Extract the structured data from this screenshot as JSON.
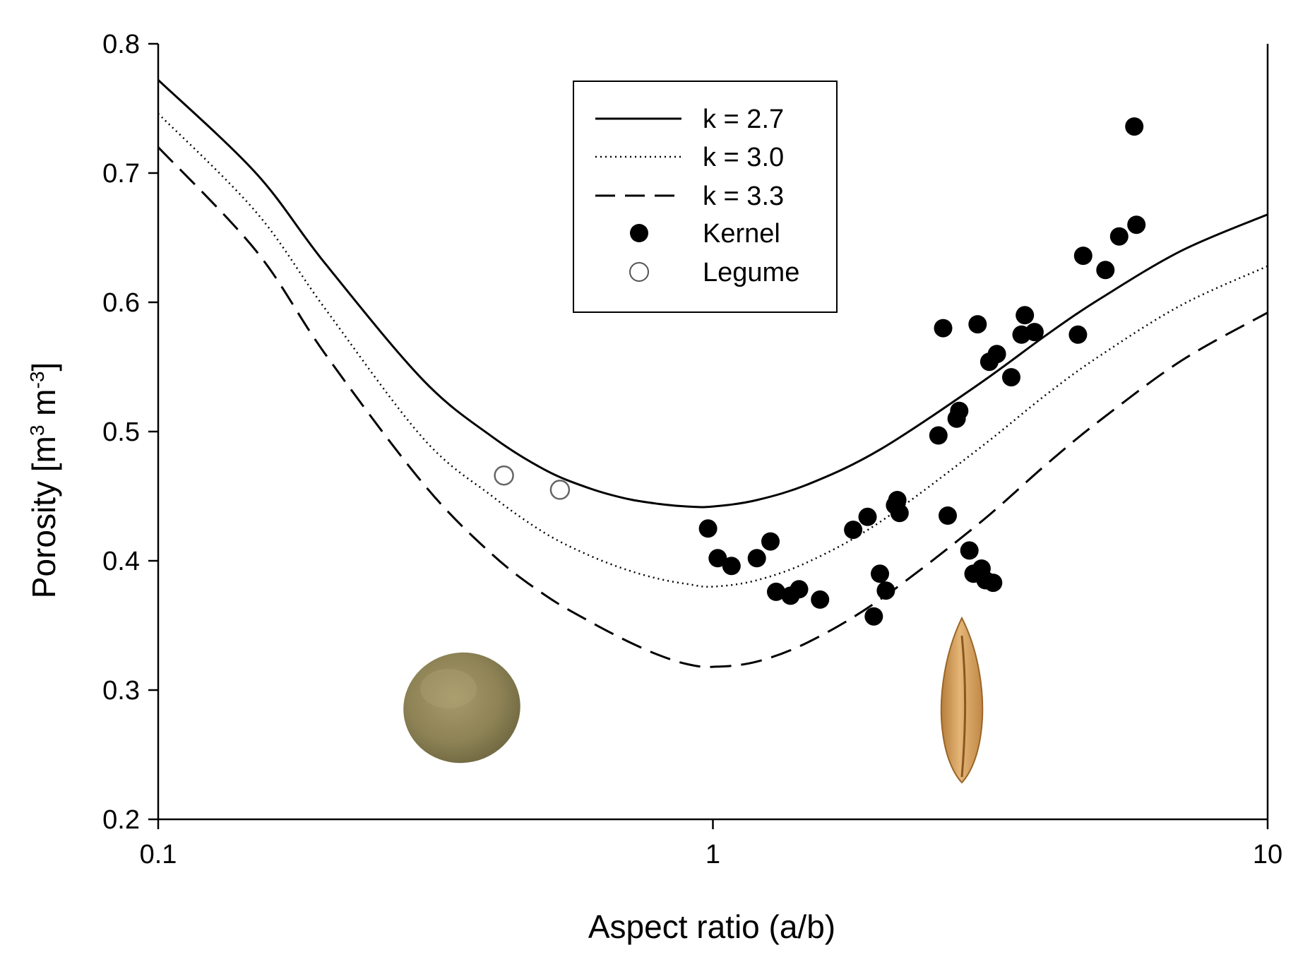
{
  "chart_data": {
    "type": "scatter",
    "xscale": "log",
    "xlim": [
      0.1,
      10
    ],
    "ylim": [
      0.2,
      0.8
    ],
    "xticks": [
      {
        "value": 0.1,
        "label": "0.1"
      },
      {
        "value": 1,
        "label": "1"
      },
      {
        "value": 10,
        "label": "10"
      }
    ],
    "yticks": [
      {
        "value": 0.2,
        "label": "0.2"
      },
      {
        "value": 0.3,
        "label": "0.3"
      },
      {
        "value": 0.4,
        "label": "0.4"
      },
      {
        "value": 0.5,
        "label": "0.5"
      },
      {
        "value": 0.6,
        "label": "0.6"
      },
      {
        "value": 0.7,
        "label": "0.7"
      },
      {
        "value": 0.8,
        "label": "0.8"
      }
    ],
    "xlabel": "Aspect ratio (a/b)",
    "ylabel": {
      "text": "Porosity [m",
      "sup1": "3",
      "mid": " m",
      "sup2": "-3",
      "end": "]"
    },
    "grid": false,
    "legend_position": "top-center",
    "series": [
      {
        "name": "k = 2.7",
        "kind": "line",
        "style": "solid",
        "x": [
          0.1,
          0.15,
          0.2,
          0.3,
          0.4,
          0.5,
          0.6,
          0.7,
          0.8,
          0.9,
          1.0,
          1.2,
          1.5,
          2.0,
          3.0,
          4.0,
          5.0,
          7.0,
          10.0
        ],
        "y": [
          0.772,
          0.7,
          0.63,
          0.54,
          0.496,
          0.47,
          0.456,
          0.448,
          0.444,
          0.442,
          0.442,
          0.447,
          0.46,
          0.486,
          0.536,
          0.575,
          0.603,
          0.64,
          0.668
        ]
      },
      {
        "name": "k = 3.0",
        "kind": "line",
        "style": "dotted",
        "x": [
          0.1,
          0.15,
          0.2,
          0.3,
          0.4,
          0.5,
          0.6,
          0.7,
          0.8,
          0.9,
          1.0,
          1.2,
          1.5,
          2.0,
          3.0,
          4.0,
          5.0,
          7.0,
          10.0
        ],
        "y": [
          0.746,
          0.67,
          0.595,
          0.495,
          0.45,
          0.421,
          0.404,
          0.393,
          0.386,
          0.382,
          0.38,
          0.385,
          0.4,
          0.43,
          0.486,
          0.529,
          0.559,
          0.598,
          0.628
        ]
      },
      {
        "name": "k = 3.3",
        "kind": "line",
        "style": "dashed",
        "x": [
          0.1,
          0.15,
          0.2,
          0.3,
          0.4,
          0.5,
          0.6,
          0.7,
          0.8,
          0.9,
          1.0,
          1.2,
          1.5,
          2.0,
          3.0,
          4.0,
          5.0,
          7.0,
          10.0
        ],
        "y": [
          0.72,
          0.64,
          0.56,
          0.46,
          0.405,
          0.373,
          0.353,
          0.338,
          0.327,
          0.32,
          0.318,
          0.322,
          0.338,
          0.37,
          0.428,
          0.475,
          0.509,
          0.555,
          0.592
        ]
      },
      {
        "name": "Kernel",
        "kind": "scatter",
        "marker": "filled-circle",
        "points": [
          [
            0.98,
            0.425
          ],
          [
            1.02,
            0.402
          ],
          [
            1.08,
            0.396
          ],
          [
            1.2,
            0.402
          ],
          [
            1.27,
            0.415
          ],
          [
            1.3,
            0.376
          ],
          [
            1.38,
            0.373
          ],
          [
            1.43,
            0.378
          ],
          [
            1.56,
            0.37
          ],
          [
            1.79,
            0.424
          ],
          [
            1.9,
            0.434
          ],
          [
            1.95,
            0.357
          ],
          [
            2.0,
            0.39
          ],
          [
            2.05,
            0.377
          ],
          [
            2.13,
            0.443
          ],
          [
            2.15,
            0.447
          ],
          [
            2.17,
            0.437
          ],
          [
            2.55,
            0.497
          ],
          [
            2.6,
            0.58
          ],
          [
            2.65,
            0.435
          ],
          [
            2.75,
            0.51
          ],
          [
            2.78,
            0.516
          ],
          [
            2.9,
            0.408
          ],
          [
            2.95,
            0.39
          ],
          [
            3.0,
            0.583
          ],
          [
            3.05,
            0.394
          ],
          [
            3.1,
            0.385
          ],
          [
            3.15,
            0.554
          ],
          [
            3.2,
            0.383
          ],
          [
            3.25,
            0.56
          ],
          [
            3.45,
            0.542
          ],
          [
            3.6,
            0.575
          ],
          [
            3.65,
            0.59
          ],
          [
            3.8,
            0.577
          ],
          [
            4.55,
            0.575
          ],
          [
            4.65,
            0.636
          ],
          [
            5.1,
            0.625
          ],
          [
            5.4,
            0.651
          ],
          [
            5.75,
            0.736
          ],
          [
            5.8,
            0.66
          ]
        ]
      },
      {
        "name": "Legume",
        "kind": "scatter",
        "marker": "open-circle",
        "points": [
          [
            0.42,
            0.466
          ],
          [
            0.53,
            0.455
          ]
        ]
      }
    ]
  }
}
